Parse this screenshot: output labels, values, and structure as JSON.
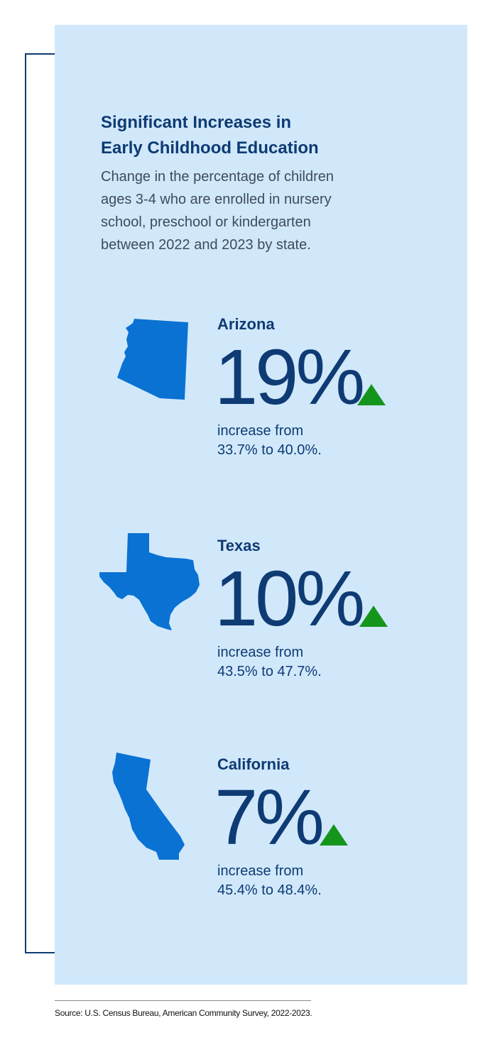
{
  "header": {
    "title_line1": "Significant Increases in",
    "title_line2": "Early Childhood Education",
    "subtitle_line1": "Change in the percentage of children",
    "subtitle_line2": "ages 3-4 who are enrolled in nursery",
    "subtitle_line3": "school, preschool or kindergarten",
    "subtitle_line4": "between 2022 and 2023 by state."
  },
  "states": [
    {
      "name": "Arizona",
      "icon": "arizona-map-icon",
      "change": "19%",
      "trend": "up",
      "desc_line1": "increase from",
      "desc_line2": "33.7% to 40.0%."
    },
    {
      "name": "Texas",
      "icon": "texas-map-icon",
      "change": "10%",
      "trend": "up",
      "desc_line1": "increase from",
      "desc_line2": "43.5% to 47.7%."
    },
    {
      "name": "California",
      "icon": "california-map-icon",
      "change": "7%",
      "trend": "up",
      "desc_line1": "increase from",
      "desc_line2": "45.4% to 48.4%."
    }
  ],
  "source": "Source: U.S. Census Bureau, American Community Survey, 2022-2023.",
  "colors": {
    "panel_background": "#d1e8fb",
    "text_navy": "#0e3b73",
    "map_blue": "#0a72d2",
    "arrow_green": "#16951c"
  }
}
